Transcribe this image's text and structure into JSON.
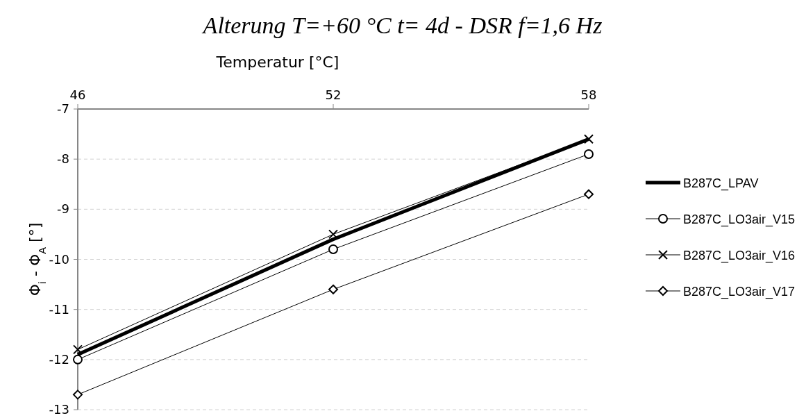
{
  "chart_data": {
    "type": "line",
    "title": "Alterung T=+60 °C t= 4d - DSR f=1,6 Hz",
    "xlabel": "Temperatur [°C]",
    "ylabel": "Φ$_{i}$ - Φ$_{A}$ [°]",
    "xlim": [
      46,
      58
    ],
    "xticks": [
      46,
      52,
      58
    ],
    "ylim": [
      -13,
      -7
    ],
    "yticks": [
      -13,
      -12,
      -11,
      -10,
      -9,
      -8,
      -7
    ],
    "grid": "y",
    "legend": "right",
    "series": [
      {
        "name": "B287C_LPAV",
        "color": "#000000",
        "marker": "none",
        "x": [
          46,
          52,
          58
        ],
        "values": [
          -11.9,
          -9.6,
          -7.6
        ]
      },
      {
        "name": "B287C_LO3air_V15",
        "color": "#000000",
        "marker": "circle",
        "x": [
          46,
          52,
          58
        ],
        "values": [
          -12.0,
          -9.8,
          -7.9
        ]
      },
      {
        "name": "B287C_LO3air_V16",
        "color": "#000000",
        "marker": "cross",
        "x": [
          46,
          52,
          58
        ],
        "values": [
          -11.8,
          -9.5,
          -7.6
        ]
      },
      {
        "name": "B287C_LO3air_V17",
        "color": "#000000",
        "marker": "diamond",
        "x": [
          46,
          52,
          58
        ],
        "values": [
          -12.7,
          -10.6,
          -8.7
        ]
      }
    ]
  }
}
